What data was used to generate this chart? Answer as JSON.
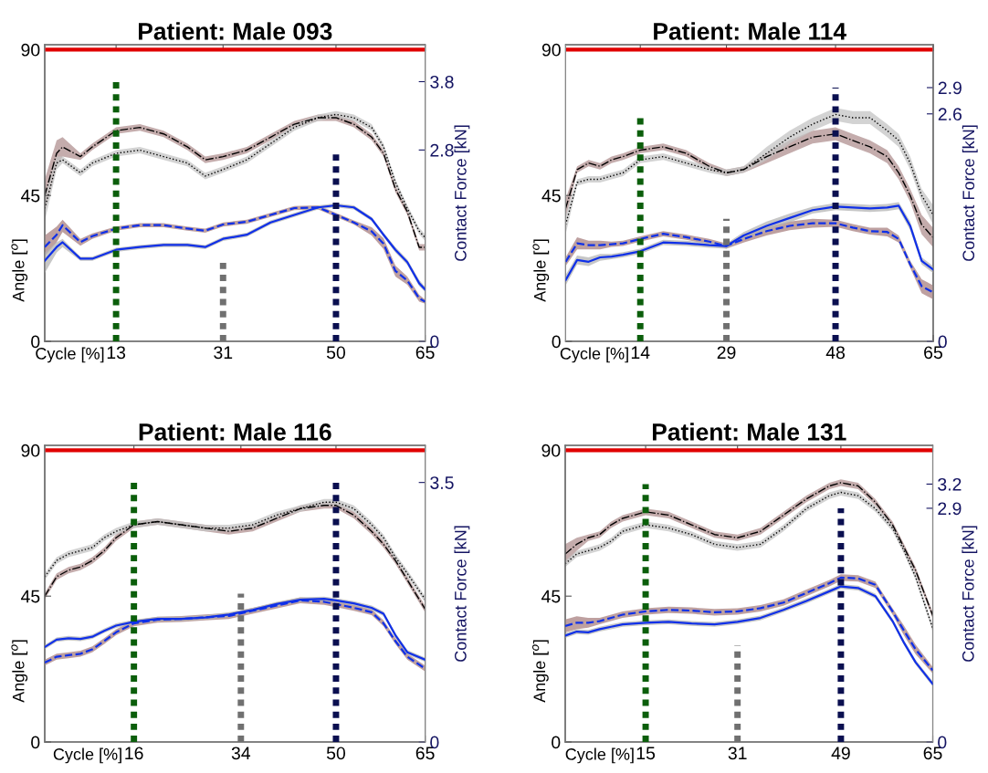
{
  "chart_data": [
    {
      "type": "line",
      "title": "Patient: Male 093",
      "xlabel": "Cycle [%]",
      "ylabel": "Angle [$^{o}$]",
      "y2label": "Contact Force [kN]",
      "xlim": [
        1,
        65
      ],
      "xticks": [
        13,
        31,
        50,
        65
      ],
      "ylim": [
        0,
        91.5
      ],
      "yticks": [
        0,
        45,
        90
      ],
      "y2lim": [
        0,
        4.34
      ],
      "y2ticks": [
        0,
        2.8,
        3.8
      ],
      "marker": "none",
      "ref_lines": [
        {
          "axis": "y",
          "value": 90,
          "color": "#e00000"
        }
      ],
      "series": [
        {
          "color": "#000000",
          "line_style": "dashdot",
          "x": [
            1,
            3,
            4,
            7,
            9,
            13,
            17,
            21,
            25,
            28,
            31,
            35,
            39,
            43,
            47,
            50,
            53,
            56,
            58,
            60,
            62,
            64,
            65
          ],
          "values": [
            45,
            58,
            60,
            57,
            60,
            65,
            66,
            64,
            60,
            56,
            57,
            59,
            63,
            67,
            69,
            69,
            67,
            63,
            58,
            47,
            40,
            29,
            29
          ],
          "lower": [
            40,
            54,
            57,
            56,
            59,
            64,
            65,
            63,
            59,
            55,
            56,
            58,
            62,
            66,
            68,
            68,
            66,
            62,
            57,
            46,
            39,
            28,
            28
          ],
          "upper": [
            50,
            62,
            63,
            58,
            61,
            66,
            67,
            65,
            61,
            57,
            58,
            60,
            64,
            68,
            70,
            70,
            68,
            64,
            59,
            48,
            41,
            30,
            30
          ]
        },
        {
          "color": "#000000",
          "line_style": "dotted",
          "x": [
            1,
            3,
            4,
            7,
            9,
            13,
            17,
            21,
            25,
            28,
            31,
            35,
            39,
            43,
            47,
            50,
            53,
            56,
            58,
            60,
            62,
            64,
            65
          ],
          "values": [
            41,
            55,
            56,
            52,
            55,
            58,
            59,
            57,
            55,
            51,
            53,
            56,
            61,
            66,
            69,
            70,
            69,
            66,
            60,
            49,
            41,
            34,
            32
          ],
          "lower": [
            37,
            53,
            55,
            51,
            54,
            57,
            58,
            56,
            54,
            50,
            52,
            55,
            60,
            65,
            68,
            69,
            68,
            65,
            59,
            48,
            40,
            33,
            31
          ],
          "upper": [
            45,
            57,
            57,
            53,
            56,
            59,
            60,
            58,
            56,
            52,
            54,
            57,
            62,
            67,
            70,
            71,
            70,
            67,
            61,
            50,
            42,
            35,
            33
          ]
        },
        {
          "color": "#1030e8",
          "line_style": "dashed",
          "axis": "y2",
          "x": [
            1,
            3,
            4,
            7,
            9,
            13,
            17,
            21,
            25,
            28,
            31,
            35,
            39,
            43,
            47,
            50,
            53,
            56,
            58,
            60,
            62,
            64,
            65
          ],
          "values": [
            1.38,
            1.56,
            1.7,
            1.45,
            1.54,
            1.65,
            1.7,
            1.7,
            1.65,
            1.62,
            1.71,
            1.75,
            1.85,
            1.95,
            1.96,
            1.85,
            1.74,
            1.61,
            1.43,
            1.03,
            0.89,
            0.63,
            0.58
          ],
          "lower": [
            1.25,
            1.45,
            1.6,
            1.4,
            1.5,
            1.62,
            1.67,
            1.67,
            1.62,
            1.59,
            1.68,
            1.72,
            1.82,
            1.92,
            1.93,
            1.82,
            1.71,
            1.55,
            1.35,
            0.95,
            0.83,
            0.58,
            0.55
          ],
          "upper": [
            1.55,
            1.68,
            1.78,
            1.5,
            1.58,
            1.68,
            1.73,
            1.73,
            1.68,
            1.65,
            1.74,
            1.78,
            1.88,
            1.98,
            1.99,
            1.88,
            1.77,
            1.67,
            1.51,
            1.11,
            0.95,
            0.68,
            0.61
          ]
        },
        {
          "color": "#1030e8",
          "line_style": "solid",
          "axis": "y2",
          "x": [
            1,
            3,
            4,
            7,
            9,
            13,
            17,
            21,
            25,
            28,
            31,
            35,
            39,
            43,
            47,
            50,
            53,
            56,
            58,
            60,
            62,
            64,
            65
          ],
          "values": [
            1.18,
            1.38,
            1.45,
            1.21,
            1.21,
            1.34,
            1.38,
            1.41,
            1.41,
            1.38,
            1.5,
            1.56,
            1.74,
            1.85,
            1.96,
            1.99,
            1.96,
            1.79,
            1.56,
            1.34,
            1.16,
            0.85,
            0.76
          ],
          "lower": [
            1.0,
            1.3,
            1.38,
            1.18,
            1.18,
            1.31,
            1.35,
            1.38,
            1.38,
            1.35,
            1.47,
            1.53,
            1.71,
            1.82,
            1.93,
            1.96,
            1.93,
            1.76,
            1.53,
            1.3,
            1.12,
            0.81,
            0.72
          ],
          "upper": [
            1.3,
            1.45,
            1.5,
            1.24,
            1.24,
            1.37,
            1.41,
            1.44,
            1.44,
            1.41,
            1.53,
            1.59,
            1.77,
            1.88,
            1.99,
            2.02,
            1.99,
            1.82,
            1.59,
            1.38,
            1.2,
            0.9,
            0.8
          ]
        },
        {
          "color": "#0b5e0b",
          "line_style": "dotted",
          "axis": "y2",
          "x": [
            13,
            13
          ],
          "values": [
            0,
            3.8
          ]
        },
        {
          "color": "#707070",
          "line_style": "dotted",
          "axis": "y2",
          "x": [
            31,
            31
          ],
          "values": [
            0,
            1.2
          ]
        },
        {
          "color": "#0a0f50",
          "line_style": "dotted",
          "axis": "y2",
          "x": [
            50,
            50
          ],
          "values": [
            0,
            2.8
          ]
        }
      ]
    },
    {
      "type": "line",
      "title": "Patient: Male 114",
      "xlabel": "Cycle [%]",
      "ylabel": "Angle [$^{o}$]",
      "y2label": "Contact Force [kN]",
      "xlim": [
        1,
        65
      ],
      "xticks": [
        14,
        29,
        48,
        65
      ],
      "ylim": [
        0,
        91.5
      ],
      "yticks": [
        0,
        45,
        90
      ],
      "y2lim": [
        0,
        3.39
      ],
      "y2ticks": [
        0,
        2.6,
        2.9
      ],
      "marker": "none",
      "ref_lines": [
        {
          "axis": "y",
          "value": 90,
          "color": "#e00000"
        }
      ],
      "series": [
        {
          "color": "#000000",
          "line_style": "dashdot",
          "x": [
            1,
            3,
            5,
            7,
            9,
            11,
            14,
            18,
            22,
            26,
            29,
            32,
            36,
            40,
            44,
            48,
            51,
            54,
            57,
            59,
            61,
            63,
            65
          ],
          "values": [
            41,
            53,
            55,
            54,
            56,
            57,
            59,
            60,
            58,
            54,
            52,
            53,
            57,
            60,
            63,
            64,
            62,
            60,
            57,
            52,
            45,
            36,
            32
          ],
          "lower": [
            38,
            52,
            54,
            53,
            55,
            56,
            58,
            59,
            57,
            53,
            51,
            52,
            55,
            58,
            61,
            62,
            60,
            58,
            55,
            50,
            43,
            33,
            29
          ],
          "upper": [
            44,
            54,
            56,
            55,
            57,
            58,
            60,
            61,
            59,
            55,
            53,
            54,
            58,
            62,
            65,
            66,
            64,
            62,
            59,
            54,
            47,
            39,
            35
          ]
        },
        {
          "color": "#000000",
          "line_style": "dotted",
          "x": [
            1,
            3,
            5,
            7,
            9,
            11,
            14,
            18,
            22,
            26,
            29,
            32,
            36,
            40,
            44,
            48,
            51,
            54,
            57,
            59,
            61,
            63,
            65
          ],
          "values": [
            36,
            49,
            50,
            50,
            51,
            52,
            56,
            57,
            55,
            53,
            52,
            53,
            58,
            63,
            67,
            70,
            69,
            69,
            65,
            62,
            55,
            45,
            39
          ],
          "lower": [
            33,
            48,
            49,
            49,
            50,
            51,
            55,
            56,
            54,
            52,
            51,
            52,
            56,
            61,
            65,
            68,
            67,
            67,
            63,
            60,
            53,
            43,
            36
          ],
          "upper": [
            39,
            50,
            51,
            51,
            52,
            53,
            57,
            58,
            56,
            54,
            53,
            54,
            60,
            65,
            69,
            72,
            71,
            71,
            67,
            64,
            57,
            47,
            42
          ]
        },
        {
          "color": "#1030e8",
          "line_style": "dashed",
          "axis": "y2",
          "x": [
            1,
            3,
            5,
            7,
            9,
            11,
            14,
            18,
            22,
            26,
            29,
            32,
            36,
            40,
            44,
            48,
            51,
            54,
            57,
            59,
            61,
            63,
            65
          ],
          "values": [
            0.91,
            1.12,
            1.1,
            1.1,
            1.11,
            1.12,
            1.17,
            1.23,
            1.19,
            1.14,
            1.09,
            1.17,
            1.26,
            1.32,
            1.35,
            1.35,
            1.3,
            1.26,
            1.25,
            1.17,
            0.88,
            0.63,
            0.56
          ],
          "lower": [
            0.86,
            1.05,
            1.05,
            1.05,
            1.08,
            1.09,
            1.14,
            1.2,
            1.16,
            1.11,
            1.06,
            1.13,
            1.21,
            1.27,
            1.3,
            1.31,
            1.26,
            1.22,
            1.2,
            1.13,
            0.84,
            0.55,
            0.48
          ],
          "upper": [
            0.96,
            1.19,
            1.15,
            1.15,
            1.14,
            1.15,
            1.2,
            1.26,
            1.22,
            1.17,
            1.12,
            1.21,
            1.31,
            1.37,
            1.4,
            1.39,
            1.34,
            1.3,
            1.3,
            1.21,
            0.92,
            0.71,
            0.64
          ]
        },
        {
          "color": "#1030e8",
          "line_style": "solid",
          "axis": "y2",
          "x": [
            1,
            3,
            5,
            7,
            9,
            11,
            14,
            18,
            22,
            26,
            29,
            32,
            36,
            40,
            44,
            48,
            51,
            54,
            57,
            59,
            61,
            63,
            65
          ],
          "values": [
            0.7,
            0.93,
            0.91,
            0.96,
            0.97,
            0.99,
            1.03,
            1.13,
            1.12,
            1.1,
            1.09,
            1.21,
            1.32,
            1.41,
            1.5,
            1.54,
            1.53,
            1.52,
            1.53,
            1.55,
            1.32,
            0.92,
            0.82
          ],
          "lower": [
            0.64,
            0.88,
            0.86,
            0.92,
            0.94,
            0.96,
            1.0,
            1.1,
            1.09,
            1.07,
            1.06,
            1.17,
            1.27,
            1.36,
            1.46,
            1.5,
            1.49,
            1.48,
            1.49,
            1.51,
            1.27,
            0.88,
            0.78
          ],
          "upper": [
            0.76,
            0.98,
            0.96,
            1.0,
            1.0,
            1.02,
            1.06,
            1.16,
            1.15,
            1.13,
            1.12,
            1.25,
            1.37,
            1.46,
            1.54,
            1.58,
            1.57,
            1.56,
            1.57,
            1.59,
            1.37,
            0.96,
            0.86
          ]
        },
        {
          "color": "#0b5e0b",
          "line_style": "dotted",
          "axis": "y2",
          "x": [
            14,
            14
          ],
          "values": [
            0,
            2.6
          ]
        },
        {
          "color": "#707070",
          "line_style": "dotted",
          "axis": "y2",
          "x": [
            29,
            29
          ],
          "values": [
            0,
            1.4
          ]
        },
        {
          "color": "#0a0f50",
          "line_style": "dotted",
          "axis": "y2",
          "x": [
            48,
            48
          ],
          "values": [
            0,
            2.9
          ]
        }
      ]
    },
    {
      "type": "line",
      "title": "Patient: Male 116",
      "xlabel": "Cycle [%]",
      "ylabel": "Angle [$^{o}$]",
      "y2label": "Contact Force [kN]",
      "xlim": [
        1,
        65
      ],
      "xticks": [
        16,
        34,
        50,
        65
      ],
      "ylim": [
        0,
        91.5
      ],
      "yticks": [
        0,
        45,
        90
      ],
      "y2lim": [
        0,
        4.0
      ],
      "y2ticks": [
        0,
        3.5
      ],
      "marker": "none",
      "ref_lines": [
        {
          "axis": "y",
          "value": 90,
          "color": "#e00000"
        }
      ],
      "series": [
        {
          "color": "#000000",
          "line_style": "dashdot",
          "x": [
            1,
            3,
            5,
            7,
            9,
            11,
            13,
            16,
            20,
            24,
            28,
            32,
            36,
            40,
            44,
            48,
            50,
            53,
            56,
            58,
            60,
            62,
            65
          ],
          "values": [
            45,
            51,
            53,
            54,
            56,
            59,
            63,
            67,
            68,
            67,
            66,
            65,
            66,
            69,
            72,
            73,
            73,
            70,
            65,
            61,
            56,
            50,
            41
          ],
          "lower": [
            44,
            50,
            52,
            53,
            55,
            58,
            62,
            66,
            67,
            66,
            65,
            64,
            65,
            68,
            71,
            72,
            72,
            69,
            64,
            60,
            55,
            49,
            40
          ],
          "upper": [
            46,
            52,
            54,
            55,
            57,
            60,
            64,
            68,
            69,
            68,
            67,
            66,
            67,
            70,
            73,
            74,
            74,
            71,
            66,
            62,
            57,
            51,
            42
          ]
        },
        {
          "color": "#000000",
          "line_style": "dotted",
          "x": [
            1,
            3,
            5,
            7,
            9,
            11,
            13,
            16,
            20,
            24,
            28,
            32,
            36,
            40,
            44,
            48,
            50,
            53,
            56,
            58,
            60,
            62,
            65
          ],
          "values": [
            51,
            56,
            58,
            59,
            60,
            63,
            65,
            67,
            68,
            67,
            66,
            66,
            67,
            70,
            72,
            74,
            74,
            72,
            67,
            63,
            57,
            52,
            44
          ],
          "lower": [
            50,
            55,
            57,
            58,
            59,
            62,
            64,
            66,
            67,
            66,
            65,
            65,
            66,
            69,
            71,
            73,
            73,
            71,
            66,
            62,
            56,
            51,
            43
          ],
          "upper": [
            52,
            57,
            59,
            60,
            61,
            64,
            66,
            68,
            69,
            68,
            67,
            67,
            68,
            71,
            73,
            75,
            75,
            73,
            68,
            64,
            58,
            53,
            45
          ]
        },
        {
          "color": "#1030e8",
          "line_style": "dashed",
          "axis": "y2",
          "x": [
            1,
            3,
            5,
            7,
            9,
            11,
            13,
            16,
            20,
            24,
            28,
            32,
            36,
            40,
            44,
            48,
            50,
            53,
            56,
            58,
            60,
            62,
            65
          ],
          "values": [
            1.07,
            1.15,
            1.17,
            1.19,
            1.25,
            1.36,
            1.48,
            1.6,
            1.65,
            1.66,
            1.68,
            1.7,
            1.77,
            1.84,
            1.91,
            1.89,
            1.86,
            1.81,
            1.75,
            1.6,
            1.36,
            1.15,
            0.99
          ],
          "lower": [
            1.03,
            1.11,
            1.13,
            1.15,
            1.21,
            1.32,
            1.44,
            1.56,
            1.61,
            1.62,
            1.64,
            1.66,
            1.73,
            1.8,
            1.87,
            1.85,
            1.82,
            1.77,
            1.71,
            1.56,
            1.32,
            1.11,
            0.95
          ],
          "upper": [
            1.11,
            1.19,
            1.21,
            1.23,
            1.29,
            1.4,
            1.52,
            1.64,
            1.69,
            1.7,
            1.72,
            1.74,
            1.81,
            1.88,
            1.95,
            1.93,
            1.9,
            1.85,
            1.79,
            1.64,
            1.4,
            1.19,
            1.03
          ]
        },
        {
          "color": "#1030e8",
          "line_style": "solid",
          "axis": "y2",
          "x": [
            1,
            3,
            5,
            7,
            9,
            11,
            13,
            16,
            20,
            24,
            28,
            32,
            36,
            40,
            44,
            48,
            50,
            53,
            56,
            58,
            60,
            62,
            65
          ],
          "values": [
            1.28,
            1.38,
            1.4,
            1.39,
            1.42,
            1.5,
            1.57,
            1.62,
            1.66,
            1.66,
            1.68,
            1.72,
            1.78,
            1.86,
            1.92,
            1.93,
            1.91,
            1.87,
            1.81,
            1.73,
            1.44,
            1.21,
            1.11
          ],
          "lower": [
            1.25,
            1.35,
            1.37,
            1.36,
            1.39,
            1.47,
            1.54,
            1.59,
            1.63,
            1.63,
            1.65,
            1.69,
            1.75,
            1.83,
            1.89,
            1.9,
            1.88,
            1.84,
            1.78,
            1.7,
            1.41,
            1.18,
            1.08
          ],
          "upper": [
            1.31,
            1.41,
            1.43,
            1.42,
            1.45,
            1.53,
            1.6,
            1.65,
            1.69,
            1.69,
            1.71,
            1.75,
            1.81,
            1.89,
            1.95,
            1.96,
            1.94,
            1.9,
            1.84,
            1.76,
            1.47,
            1.24,
            1.14
          ]
        },
        {
          "color": "#0b5e0b",
          "line_style": "dotted",
          "axis": "y2",
          "x": [
            16,
            16
          ],
          "values": [
            0,
            3.5
          ]
        },
        {
          "color": "#707070",
          "line_style": "dotted",
          "axis": "y2",
          "x": [
            34,
            34
          ],
          "values": [
            0,
            2.0
          ]
        },
        {
          "color": "#0a0f50",
          "line_style": "dotted",
          "axis": "y2",
          "x": [
            50,
            50
          ],
          "values": [
            0,
            3.5
          ]
        }
      ]
    },
    {
      "type": "line",
      "title": "Patient: Male 131",
      "xlabel": "Cycle [%]",
      "ylabel": "Angle [$^{o}$]",
      "y2label": "Contact Force [kN]",
      "xlim": [
        1,
        65
      ],
      "xticks": [
        15,
        31,
        49,
        65
      ],
      "ylim": [
        0,
        91.5
      ],
      "yticks": [
        0,
        45,
        90
      ],
      "y2lim": [
        0,
        3.68
      ],
      "y2ticks": [
        0,
        2.9,
        3.2
      ],
      "marker": "none",
      "ref_lines": [
        {
          "axis": "y",
          "value": 90,
          "color": "#e00000"
        }
      ],
      "series": [
        {
          "color": "#000000",
          "line_style": "dashdot",
          "x": [
            1,
            3,
            5,
            7,
            9,
            11,
            15,
            19,
            23,
            27,
            31,
            35,
            39,
            43,
            47,
            49,
            52,
            55,
            58,
            60,
            62,
            65
          ],
          "values": [
            58,
            61,
            63,
            64,
            67,
            69,
            71,
            70,
            67,
            64,
            63,
            65,
            70,
            75,
            79,
            80,
            79,
            74,
            67,
            60,
            53,
            39
          ],
          "lower": [
            55,
            59,
            62,
            63,
            66,
            68,
            70,
            69,
            66,
            63,
            62,
            64,
            69,
            74,
            78,
            79,
            78,
            73,
            66,
            59,
            52,
            38
          ],
          "upper": [
            61,
            63,
            64,
            65,
            68,
            70,
            72,
            71,
            68,
            65,
            64,
            66,
            71,
            76,
            80,
            81,
            80,
            75,
            68,
            61,
            54,
            40
          ]
        },
        {
          "color": "#000000",
          "line_style": "dotted",
          "x": [
            1,
            3,
            5,
            7,
            9,
            11,
            15,
            19,
            23,
            27,
            31,
            35,
            39,
            43,
            47,
            49,
            52,
            55,
            58,
            60,
            62,
            65
          ],
          "values": [
            55,
            58,
            59,
            60,
            62,
            65,
            67,
            66,
            64,
            61,
            60,
            61,
            66,
            72,
            76,
            77,
            76,
            72,
            66,
            59,
            51,
            35
          ],
          "lower": [
            54,
            57,
            58,
            59,
            61,
            64,
            66,
            65,
            63,
            60,
            59,
            60,
            65,
            71,
            75,
            76,
            75,
            71,
            65,
            58,
            50,
            34
          ],
          "upper": [
            56,
            59,
            60,
            61,
            63,
            66,
            68,
            67,
            65,
            62,
            61,
            62,
            67,
            73,
            77,
            78,
            77,
            73,
            67,
            60,
            52,
            36
          ]
        },
        {
          "color": "#1030e8",
          "line_style": "dashed",
          "axis": "y2",
          "x": [
            1,
            3,
            5,
            7,
            9,
            11,
            15,
            19,
            23,
            27,
            31,
            35,
            39,
            43,
            47,
            49,
            52,
            55,
            58,
            60,
            62,
            65
          ],
          "values": [
            1.44,
            1.48,
            1.48,
            1.5,
            1.54,
            1.58,
            1.62,
            1.64,
            1.63,
            1.61,
            1.62,
            1.66,
            1.73,
            1.85,
            1.97,
            2.04,
            2.03,
            1.95,
            1.62,
            1.38,
            1.15,
            0.89
          ],
          "lower": [
            1.36,
            1.4,
            1.42,
            1.46,
            1.5,
            1.54,
            1.58,
            1.6,
            1.59,
            1.57,
            1.58,
            1.62,
            1.69,
            1.81,
            1.93,
            2.0,
            1.99,
            1.91,
            1.58,
            1.32,
            1.09,
            0.85
          ],
          "upper": [
            1.52,
            1.56,
            1.54,
            1.54,
            1.58,
            1.62,
            1.66,
            1.68,
            1.67,
            1.65,
            1.66,
            1.7,
            1.77,
            1.89,
            2.01,
            2.08,
            2.07,
            1.99,
            1.66,
            1.44,
            1.21,
            0.93
          ]
        },
        {
          "color": "#1030e8",
          "line_style": "solid",
          "axis": "y2",
          "x": [
            1,
            3,
            5,
            7,
            9,
            11,
            15,
            19,
            23,
            27,
            31,
            35,
            39,
            43,
            47,
            49,
            52,
            55,
            58,
            60,
            62,
            65
          ],
          "values": [
            1.32,
            1.37,
            1.36,
            1.4,
            1.43,
            1.46,
            1.48,
            1.49,
            1.47,
            1.46,
            1.49,
            1.54,
            1.64,
            1.75,
            1.87,
            1.93,
            1.91,
            1.81,
            1.5,
            1.23,
            0.99,
            0.72
          ],
          "lower": [
            1.29,
            1.34,
            1.33,
            1.37,
            1.4,
            1.43,
            1.45,
            1.46,
            1.44,
            1.43,
            1.46,
            1.51,
            1.61,
            1.72,
            1.84,
            1.9,
            1.88,
            1.78,
            1.47,
            1.2,
            0.96,
            0.69
          ],
          "upper": [
            1.35,
            1.4,
            1.39,
            1.43,
            1.46,
            1.49,
            1.51,
            1.52,
            1.5,
            1.49,
            1.52,
            1.57,
            1.67,
            1.78,
            1.9,
            1.96,
            1.94,
            1.84,
            1.53,
            1.26,
            1.02,
            0.75
          ]
        },
        {
          "color": "#0b5e0b",
          "line_style": "dotted",
          "axis": "y2",
          "x": [
            15,
            15
          ],
          "values": [
            0,
            3.2
          ]
        },
        {
          "color": "#707070",
          "line_style": "dotted",
          "axis": "y2",
          "x": [
            31,
            31
          ],
          "values": [
            0,
            1.2
          ]
        },
        {
          "color": "#0a0f50",
          "line_style": "dotted",
          "axis": "y2",
          "x": [
            49,
            49
          ],
          "values": [
            0,
            2.9
          ]
        }
      ]
    }
  ]
}
